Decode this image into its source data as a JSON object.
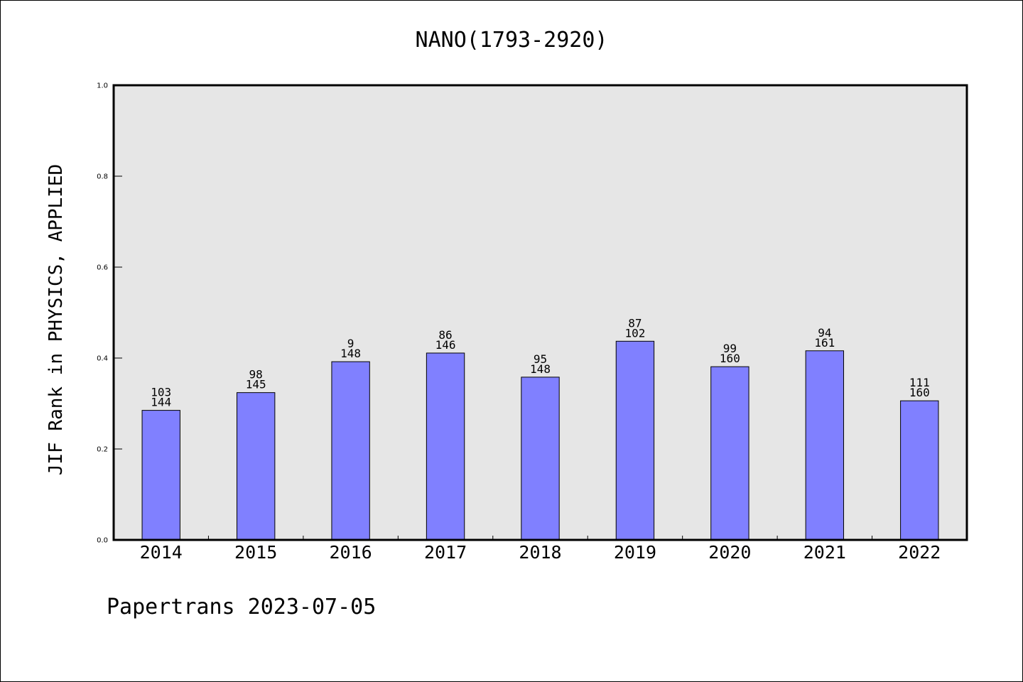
{
  "chart_data": {
    "type": "bar",
    "title": "NANO(1793-2920)",
    "ylabel": "JIF Rank in PHYSICS, APPLIED",
    "xlabel": "",
    "ylim": [
      0,
      1.0
    ],
    "yticks": [
      "0.0",
      "0.2",
      "0.4",
      "0.6",
      "0.8",
      "1.0"
    ],
    "categories": [
      "2014",
      "2015",
      "2016",
      "2017",
      "2018",
      "2019",
      "2020",
      "2021",
      "2022"
    ],
    "values": [
      0.285,
      0.324,
      0.392,
      0.411,
      0.358,
      0.437,
      0.381,
      0.416,
      0.306
    ],
    "rank_labels": [
      "103",
      "98",
      "9",
      "86",
      "95",
      "87",
      "99",
      "94",
      "111"
    ],
    "total_labels": [
      "144",
      "145",
      "148",
      "146",
      "148",
      "102",
      "160",
      "161",
      "160"
    ],
    "bar_color": "#8080ff",
    "plot_background": "#e6e6e6",
    "grid": false
  },
  "footer": {
    "text": "Papertrans 2023-07-05"
  }
}
